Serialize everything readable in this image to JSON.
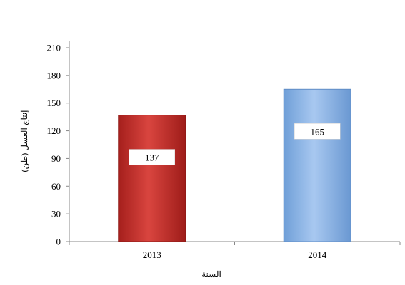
{
  "chart_data": {
    "type": "bar",
    "title": "",
    "categories": [
      "2013",
      "2014"
    ],
    "values": [
      137,
      165
    ],
    "data_labels": [
      "137",
      "165"
    ],
    "bar_colors": [
      "#c9302c",
      "#8cb4e8"
    ],
    "xlabel": "السنة",
    "ylabel": "إنتاج العسل (طن)",
    "ylim": [
      0,
      210
    ],
    "yticks": [
      0,
      30,
      60,
      90,
      120,
      150,
      180,
      210
    ],
    "ytick_labels": [
      "0",
      "30",
      "60",
      "90",
      "120",
      "150",
      "180",
      "210"
    ],
    "grid": false,
    "legend": "none"
  }
}
